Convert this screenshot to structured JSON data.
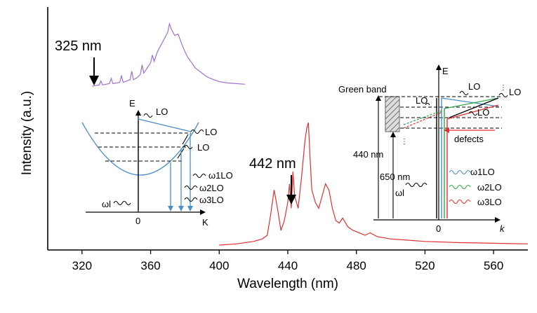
{
  "chart_data": {
    "type": "line",
    "xlabel": "Wavelength (nm)",
    "ylabel": "Intensity (a.u.)",
    "xlim": [
      300,
      580
    ],
    "x_ticks": [
      "320",
      "360",
      "400",
      "440",
      "480",
      "520",
      "560"
    ],
    "y_ticks": "none",
    "grid": false,
    "series": [
      {
        "color": "#a070d0",
        "x": [
          326,
          328,
          330,
          331,
          332,
          334,
          336,
          337,
          338,
          340,
          342,
          343,
          344,
          346,
          348,
          349,
          350,
          352,
          354,
          355,
          356,
          358,
          360,
          361,
          362,
          364,
          366,
          367,
          368,
          370,
          371,
          372,
          374,
          376,
          377,
          378,
          380,
          382,
          384,
          386,
          388,
          390,
          392,
          394,
          396,
          398,
          400,
          405,
          410,
          415
        ],
        "y": [
          0.02,
          0.03,
          0.04,
          0.1,
          0.04,
          0.05,
          0.06,
          0.14,
          0.06,
          0.07,
          0.08,
          0.18,
          0.08,
          0.1,
          0.12,
          0.25,
          0.12,
          0.15,
          0.2,
          0.35,
          0.22,
          0.3,
          0.38,
          0.5,
          0.4,
          0.55,
          0.65,
          0.7,
          0.75,
          0.85,
          0.98,
          0.9,
          0.8,
          0.82,
          0.75,
          0.68,
          0.55,
          0.45,
          0.38,
          0.3,
          0.26,
          0.22,
          0.18,
          0.15,
          0.13,
          0.11,
          0.09,
          0.07,
          0.06,
          0.05
        ]
      },
      {
        "color": "#e03030",
        "x": [
          400,
          410,
          420,
          425,
          428,
          430,
          432,
          434,
          436,
          438,
          440,
          441,
          442,
          443,
          444,
          446,
          448,
          450,
          451,
          452,
          453,
          454,
          456,
          458,
          460,
          462,
          464,
          466,
          468,
          470,
          472,
          475,
          478,
          480,
          485,
          488,
          492,
          500,
          510,
          520,
          530,
          540,
          550,
          560,
          570,
          580
        ],
        "y": [
          0.0,
          0.01,
          0.03,
          0.05,
          0.08,
          0.25,
          0.45,
          0.3,
          0.12,
          0.2,
          0.35,
          0.5,
          0.3,
          0.6,
          0.4,
          0.3,
          0.55,
          0.85,
          0.95,
          1.0,
          0.7,
          0.45,
          0.35,
          0.3,
          0.4,
          0.5,
          0.45,
          0.3,
          0.2,
          0.18,
          0.22,
          0.15,
          0.12,
          0.11,
          0.08,
          0.1,
          0.07,
          0.05,
          0.04,
          0.03,
          0.025,
          0.02,
          0.018,
          0.015,
          0.012,
          0.01
        ]
      }
    ],
    "annotations": [
      {
        "text": "325 nm",
        "x": 325
      },
      {
        "text": "442 nm",
        "x": 442
      }
    ]
  },
  "left_inset": {
    "labels": {
      "E": "E",
      "K": "K",
      "zero": "0",
      "lo_top": "LO",
      "lo_mid": "LO",
      "lo_low": "LO",
      "omega_l": "ωl",
      "omega_1lo": "ω1LO",
      "omega_2lo": "ω2LO",
      "omega_3lo": "ω3LO"
    }
  },
  "right_inset": {
    "labels": {
      "E": "E",
      "k": "k",
      "zero": "0",
      "green_band": "Green band",
      "lo_1": "LO",
      "lo_2": "LO",
      "lo_3": "LO",
      "lo_4": "LO",
      "defects": "defects",
      "nm_440": "440 nm",
      "nm_650": "650 nm",
      "omega_l": "ωl",
      "omega_1lo": "ω1LO",
      "omega_2lo": "ω2LO",
      "omega_3lo": "ω3LO"
    }
  },
  "colors": {
    "purple_series": "#a070d0",
    "red_series": "#e03030",
    "blue_arrows": "#4a8fc8",
    "green_arrow": "#2aa84a",
    "red_arrow": "#e03030"
  }
}
